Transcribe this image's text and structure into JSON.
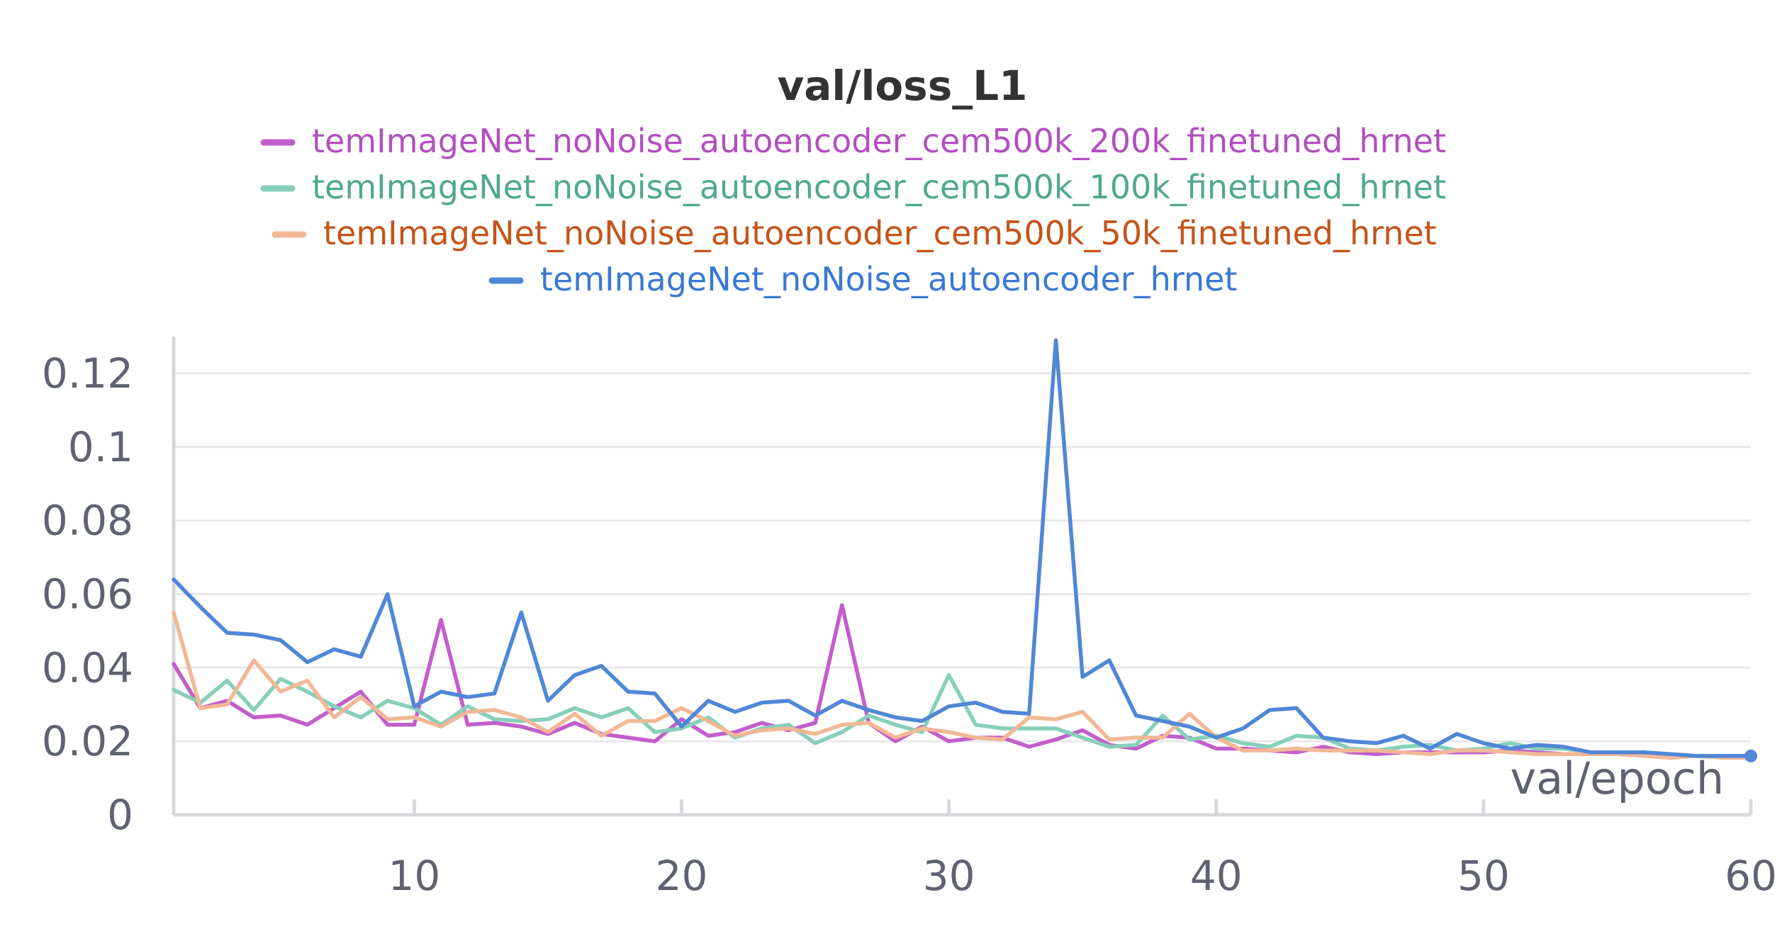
{
  "chart_data": {
    "type": "line",
    "title": "val/loss_L1",
    "xlabel": "val/epoch",
    "ylabel": "",
    "xlim": [
      1,
      60
    ],
    "ylim": [
      0,
      0.13
    ],
    "x_ticks": [
      10,
      20,
      30,
      40,
      50,
      60
    ],
    "x_tick_labels": [
      "10",
      "20",
      "30",
      "40",
      "50",
      "60"
    ],
    "y_ticks": [
      0,
      0.02,
      0.04,
      0.06,
      0.08,
      0.1,
      0.12
    ],
    "y_tick_labels": [
      "0",
      "0.02",
      "0.04",
      "0.06",
      "0.08",
      "0.1",
      "0.12"
    ],
    "grid": true,
    "legend_position": "top-center",
    "series": [
      {
        "name": "temImageNet_noNoise_autoencoder_cem500k_200k_finetuned_hrnet",
        "color": "#c25ecb",
        "text_color": "#b24fc0",
        "x": [
          1,
          2,
          3,
          4,
          5,
          6,
          7,
          8,
          9,
          10,
          11,
          12,
          13,
          14,
          15,
          16,
          17,
          18,
          19,
          20,
          21,
          22,
          23,
          24,
          25,
          26,
          27,
          28,
          29,
          30,
          31,
          32,
          33,
          34,
          35,
          36,
          37,
          38,
          39,
          40,
          41,
          42,
          43,
          44,
          45,
          46,
          47,
          48,
          49,
          50,
          51,
          52,
          53,
          54,
          55,
          56,
          57,
          58,
          59,
          60
        ],
        "values": [
          0.041,
          0.029,
          0.031,
          0.0265,
          0.027,
          0.0245,
          0.029,
          0.0335,
          0.0245,
          0.0245,
          0.053,
          0.0245,
          0.025,
          0.024,
          0.022,
          0.025,
          0.022,
          0.021,
          0.02,
          0.026,
          0.0215,
          0.0225,
          0.025,
          0.023,
          0.025,
          0.057,
          0.025,
          0.02,
          0.024,
          0.02,
          0.021,
          0.021,
          0.0185,
          0.0205,
          0.023,
          0.019,
          0.018,
          0.0215,
          0.021,
          0.018,
          0.018,
          0.0175,
          0.017,
          0.0185,
          0.017,
          0.0165,
          0.017,
          0.017,
          0.017,
          0.017,
          0.0175,
          0.017,
          0.0165,
          0.0165,
          0.0165,
          0.0165,
          0.016,
          0.016,
          0.016,
          0.016
        ]
      },
      {
        "name": "temImageNet_noNoise_autoencoder_cem500k_100k_finetuned_hrnet",
        "color": "#87cfbb",
        "text_color": "#4fa88f",
        "x": [
          1,
          2,
          3,
          4,
          5,
          6,
          7,
          8,
          9,
          10,
          11,
          12,
          13,
          14,
          15,
          16,
          17,
          18,
          19,
          20,
          21,
          22,
          23,
          24,
          25,
          26,
          27,
          28,
          29,
          30,
          31,
          32,
          33,
          34,
          35,
          36,
          37,
          38,
          39,
          40,
          41,
          42,
          43,
          44,
          45,
          46,
          47,
          48,
          49,
          50,
          51,
          52,
          53,
          54,
          55,
          56,
          57,
          58,
          59,
          60
        ],
        "values": [
          0.034,
          0.0305,
          0.0365,
          0.0285,
          0.037,
          0.0335,
          0.0295,
          0.0265,
          0.031,
          0.029,
          0.0245,
          0.0295,
          0.026,
          0.0255,
          0.026,
          0.029,
          0.0265,
          0.029,
          0.0225,
          0.0235,
          0.0265,
          0.021,
          0.0235,
          0.0245,
          0.0195,
          0.0225,
          0.027,
          0.0245,
          0.0225,
          0.038,
          0.0245,
          0.0235,
          0.0235,
          0.0235,
          0.021,
          0.0185,
          0.019,
          0.027,
          0.0205,
          0.0215,
          0.0195,
          0.0185,
          0.0215,
          0.021,
          0.018,
          0.0175,
          0.0185,
          0.019,
          0.0175,
          0.018,
          0.0195,
          0.018,
          0.018,
          0.017,
          0.0165,
          0.0165,
          0.016,
          0.016,
          0.016,
          0.0155
        ]
      },
      {
        "name": "temImageNet_noNoise_autoencoder_cem500k_50k_finetuned_hrnet",
        "color": "#f2b896",
        "text_color": "#c4541a",
        "x": [
          1,
          2,
          3,
          4,
          5,
          6,
          7,
          8,
          9,
          10,
          11,
          12,
          13,
          14,
          15,
          16,
          17,
          18,
          19,
          20,
          21,
          22,
          23,
          24,
          25,
          26,
          27,
          28,
          29,
          30,
          31,
          32,
          33,
          34,
          35,
          36,
          37,
          38,
          39,
          40,
          41,
          42,
          43,
          44,
          45,
          46,
          47,
          48,
          49,
          50,
          51,
          52,
          53,
          54,
          55,
          56,
          57,
          58,
          59,
          60
        ],
        "values": [
          0.055,
          0.029,
          0.03,
          0.042,
          0.0335,
          0.0365,
          0.0265,
          0.032,
          0.026,
          0.0265,
          0.024,
          0.028,
          0.0285,
          0.0265,
          0.0225,
          0.0275,
          0.0215,
          0.0255,
          0.0255,
          0.029,
          0.0255,
          0.0215,
          0.023,
          0.0235,
          0.022,
          0.0245,
          0.025,
          0.021,
          0.0235,
          0.0225,
          0.021,
          0.0205,
          0.0265,
          0.026,
          0.028,
          0.0205,
          0.021,
          0.021,
          0.0275,
          0.021,
          0.0175,
          0.0175,
          0.018,
          0.0175,
          0.0175,
          0.0175,
          0.017,
          0.0165,
          0.0175,
          0.0175,
          0.017,
          0.0165,
          0.0165,
          0.0165,
          0.0165,
          0.016,
          0.0155,
          0.016,
          0.0155,
          0.0155
        ]
      },
      {
        "name": "temImageNet_noNoise_autoencoder_hrnet",
        "color": "#5087d6",
        "text_color": "#3a78d4",
        "x": [
          1,
          2,
          3,
          4,
          5,
          6,
          7,
          8,
          9,
          10,
          11,
          12,
          13,
          14,
          15,
          16,
          17,
          18,
          19,
          20,
          21,
          22,
          23,
          24,
          25,
          26,
          27,
          28,
          29,
          30,
          31,
          32,
          33,
          34,
          35,
          36,
          37,
          38,
          39,
          40,
          41,
          42,
          43,
          44,
          45,
          46,
          47,
          48,
          49,
          50,
          51,
          52,
          53,
          54,
          55,
          56,
          57,
          58,
          59,
          60
        ],
        "values": [
          0.064,
          0.0565,
          0.0495,
          0.049,
          0.0475,
          0.0415,
          0.045,
          0.043,
          0.06,
          0.0295,
          0.0335,
          0.032,
          0.033,
          0.055,
          0.031,
          0.038,
          0.0405,
          0.0335,
          0.033,
          0.024,
          0.031,
          0.028,
          0.0305,
          0.031,
          0.027,
          0.031,
          0.0285,
          0.0265,
          0.0255,
          0.0295,
          0.0305,
          0.028,
          0.0275,
          0.129,
          0.0375,
          0.042,
          0.027,
          0.0255,
          0.024,
          0.021,
          0.0235,
          0.0285,
          0.029,
          0.021,
          0.02,
          0.0195,
          0.0215,
          0.018,
          0.022,
          0.0195,
          0.018,
          0.019,
          0.0185,
          0.017,
          0.017,
          0.017,
          0.0165,
          0.016,
          0.016,
          0.016
        ]
      }
    ]
  }
}
